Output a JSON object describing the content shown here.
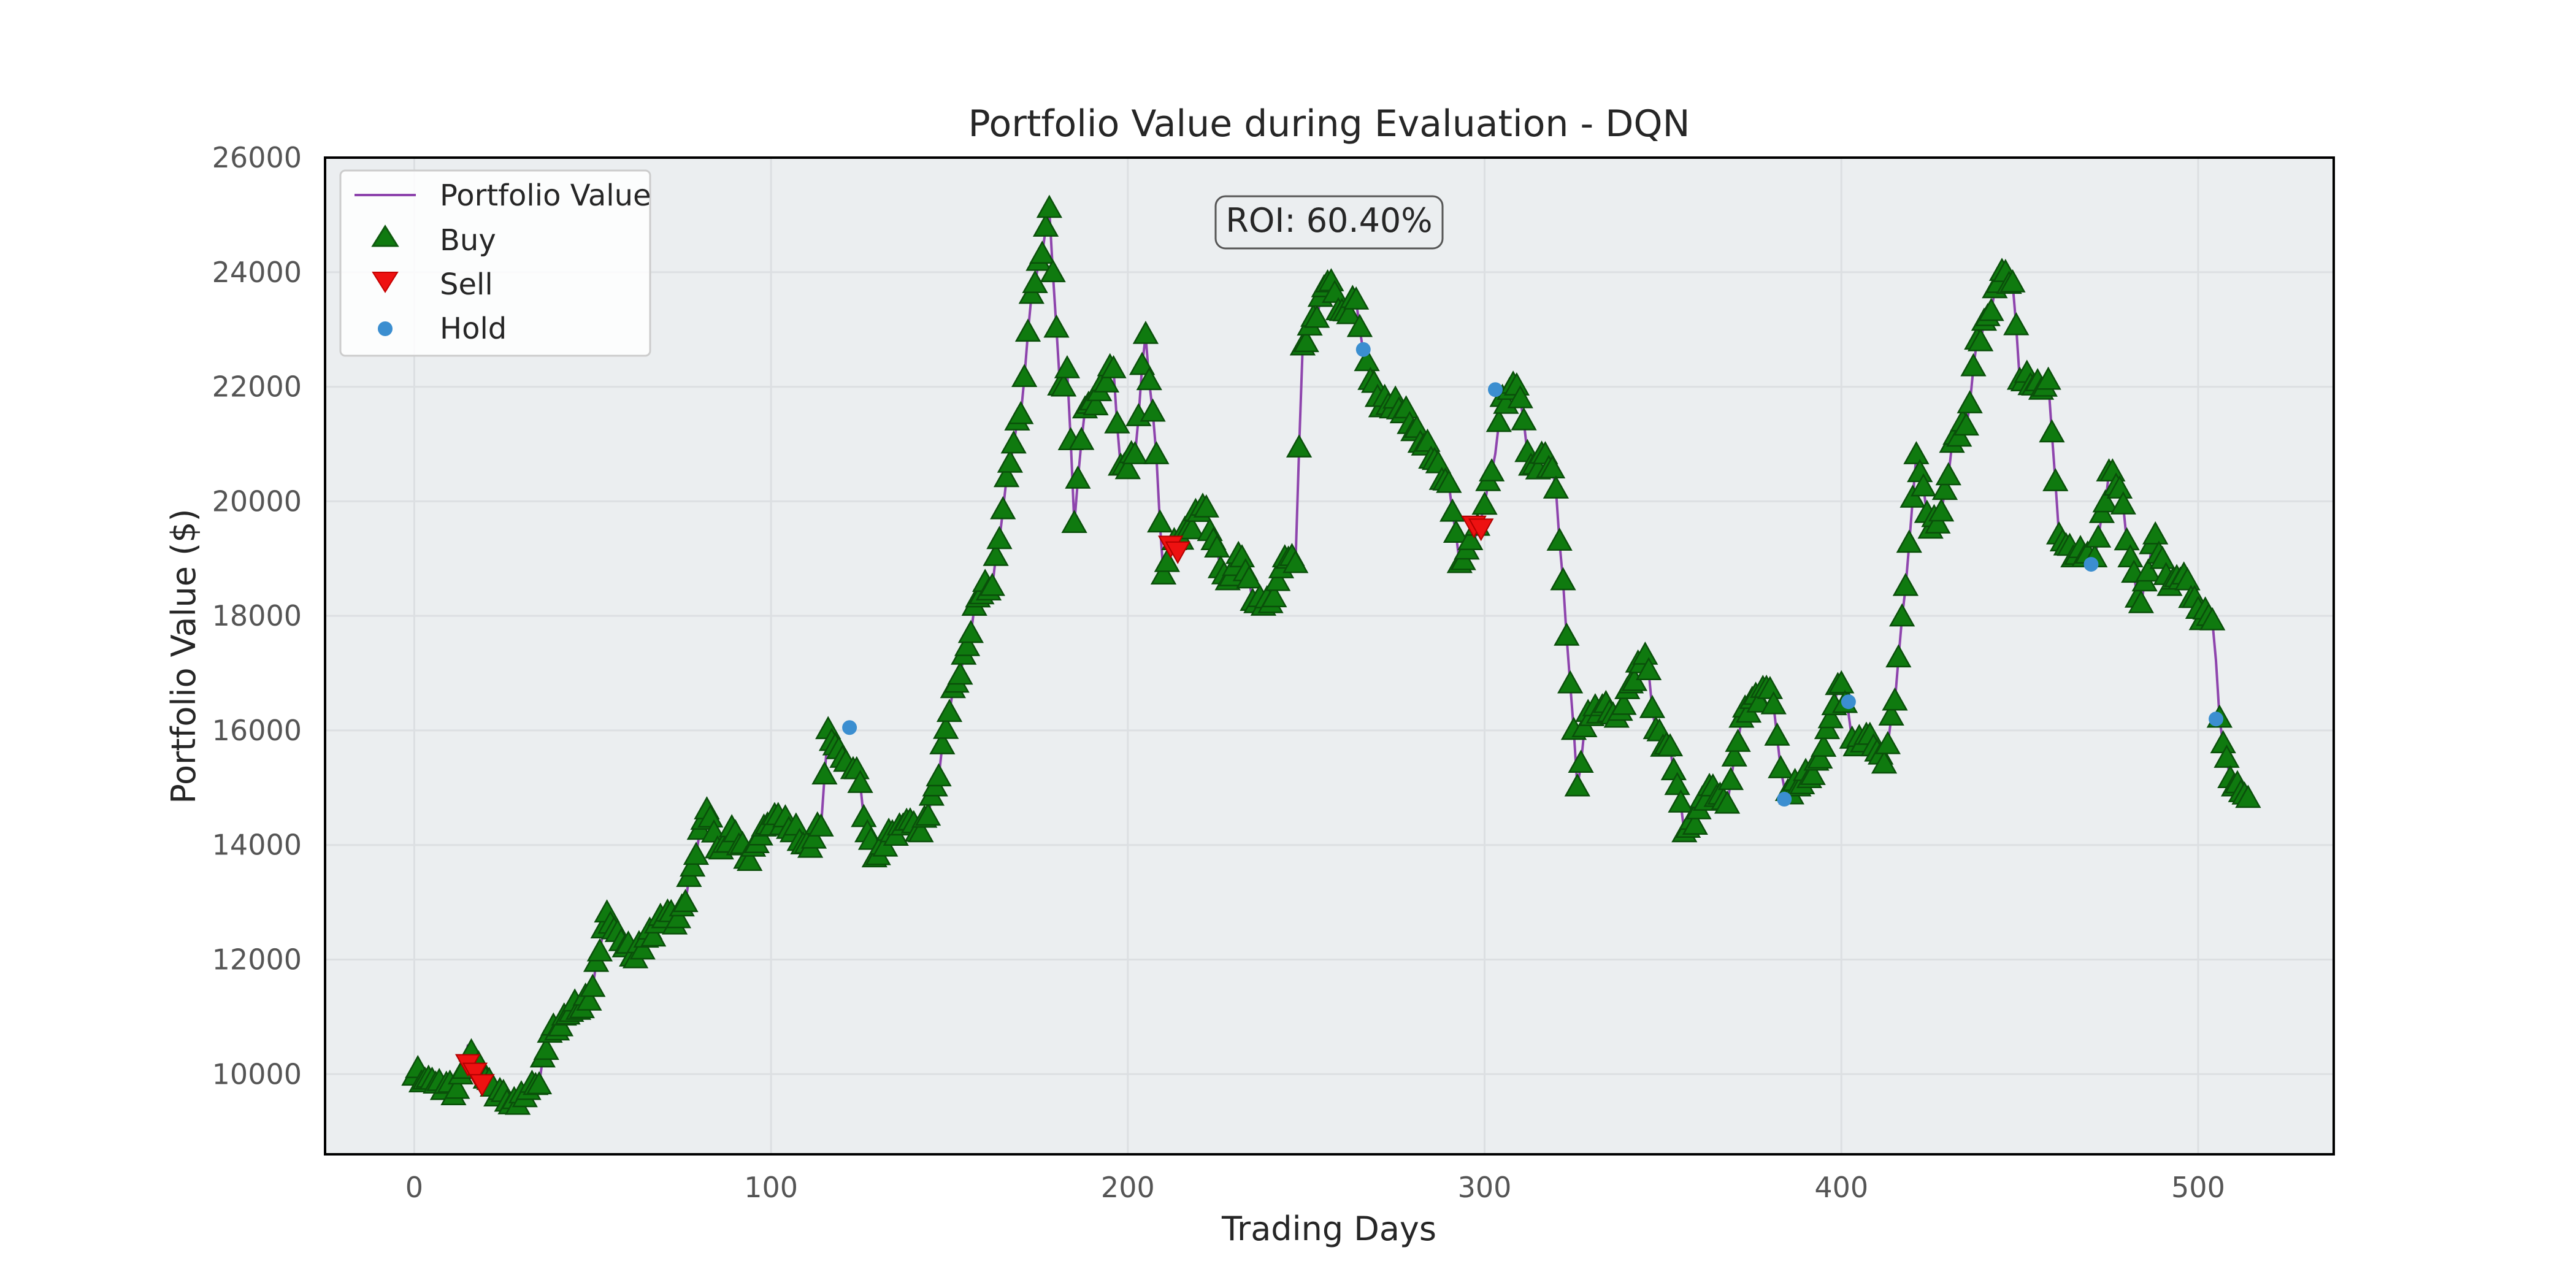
{
  "colors": {
    "background": "#ffffff",
    "plot_background": "#ebeef0",
    "grid": "#dcdfe2",
    "frame": "#000000",
    "line": "#8e44ad",
    "buy": "#0f7a0f",
    "sell": "#ee1111",
    "hold": "#3b8ed0",
    "text": "#262626",
    "tick_text": "#555555"
  },
  "roi_label": "ROI: 60.40%",
  "chart_data": {
    "type": "line",
    "title": "Portfolio Value during Evaluation - DQN",
    "xlabel": "Trading Days",
    "ylabel": "Portfolio Value ($)",
    "xlim": [
      -25,
      538
    ],
    "ylim": [
      8600,
      26000
    ],
    "xticks": [
      0,
      100,
      200,
      300,
      400,
      500
    ],
    "yticks": [
      10000,
      12000,
      14000,
      16000,
      18000,
      20000,
      22000,
      24000,
      26000
    ],
    "grid": true,
    "legend": {
      "position": "top-left",
      "entries": [
        "Portfolio Value",
        "Buy",
        "Sell",
        "Hold"
      ]
    },
    "anchors": [
      [
        0,
        9950
      ],
      [
        5,
        9880
      ],
      [
        8,
        9700
      ],
      [
        12,
        9720
      ],
      [
        15,
        10500
      ],
      [
        17,
        10100
      ],
      [
        20,
        9900
      ],
      [
        24,
        9700
      ],
      [
        27,
        9450
      ],
      [
        32,
        9700
      ],
      [
        35,
        9800
      ],
      [
        38,
        10700
      ],
      [
        42,
        11000
      ],
      [
        46,
        11100
      ],
      [
        50,
        11500
      ],
      [
        54,
        12800
      ],
      [
        58,
        12300
      ],
      [
        62,
        12000
      ],
      [
        66,
        12500
      ],
      [
        70,
        12700
      ],
      [
        74,
        12700
      ],
      [
        78,
        13600
      ],
      [
        82,
        14600
      ],
      [
        86,
        13900
      ],
      [
        90,
        14200
      ],
      [
        94,
        13700
      ],
      [
        98,
        14300
      ],
      [
        102,
        14500
      ],
      [
        106,
        14200
      ],
      [
        110,
        14000
      ],
      [
        114,
        14300
      ],
      [
        116,
        16000
      ],
      [
        120,
        15500
      ],
      [
        124,
        15300
      ],
      [
        127,
        14200
      ],
      [
        130,
        13800
      ],
      [
        134,
        14200
      ],
      [
        138,
        14400
      ],
      [
        142,
        14200
      ],
      [
        146,
        15000
      ],
      [
        150,
        16300
      ],
      [
        154,
        17300
      ],
      [
        158,
        18300
      ],
      [
        162,
        18500
      ],
      [
        166,
        20400
      ],
      [
        170,
        21500
      ],
      [
        173,
        23600
      ],
      [
        176,
        24300
      ],
      [
        178,
        25100
      ],
      [
        181,
        22000
      ],
      [
        183,
        22300
      ],
      [
        185,
        19600
      ],
      [
        188,
        21600
      ],
      [
        192,
        21900
      ],
      [
        196,
        22300
      ],
      [
        198,
        20600
      ],
      [
        202,
        20800
      ],
      [
        205,
        22900
      ],
      [
        208,
        20800
      ],
      [
        210,
        18700
      ],
      [
        213,
        19300
      ],
      [
        217,
        19500
      ],
      [
        221,
        19900
      ],
      [
        224,
        19300
      ],
      [
        228,
        18600
      ],
      [
        232,
        19000
      ],
      [
        236,
        18200
      ],
      [
        240,
        18200
      ],
      [
        244,
        19000
      ],
      [
        247,
        18900
      ],
      [
        249,
        22700
      ],
      [
        252,
        23200
      ],
      [
        256,
        23800
      ],
      [
        260,
        23300
      ],
      [
        264,
        23500
      ],
      [
        266,
        22600
      ],
      [
        270,
        21800
      ],
      [
        274,
        21600
      ],
      [
        278,
        21600
      ],
      [
        282,
        21000
      ],
      [
        286,
        20700
      ],
      [
        290,
        20300
      ],
      [
        293,
        18900
      ],
      [
        296,
        19300
      ],
      [
        299,
        19700
      ],
      [
        302,
        20500
      ],
      [
        305,
        21800
      ],
      [
        309,
        22000
      ],
      [
        313,
        20600
      ],
      [
        317,
        20800
      ],
      [
        320,
        20200
      ],
      [
        322,
        18600
      ],
      [
        324,
        16800
      ],
      [
        326,
        15000
      ],
      [
        329,
        16300
      ],
      [
        333,
        16400
      ],
      [
        337,
        16200
      ],
      [
        341,
        16800
      ],
      [
        345,
        17300
      ],
      [
        348,
        16000
      ],
      [
        352,
        15700
      ],
      [
        356,
        14200
      ],
      [
        360,
        14600
      ],
      [
        364,
        15000
      ],
      [
        368,
        14700
      ],
      [
        372,
        16200
      ],
      [
        376,
        16600
      ],
      [
        380,
        16700
      ],
      [
        384,
        15000
      ],
      [
        388,
        15000
      ],
      [
        392,
        15200
      ],
      [
        396,
        16000
      ],
      [
        400,
        16800
      ],
      [
        404,
        15700
      ],
      [
        408,
        15900
      ],
      [
        412,
        15400
      ],
      [
        415,
        16500
      ],
      [
        418,
        18500
      ],
      [
        421,
        20800
      ],
      [
        425,
        19500
      ],
      [
        428,
        19800
      ],
      [
        431,
        21000
      ],
      [
        435,
        21300
      ],
      [
        438,
        22800
      ],
      [
        442,
        23300
      ],
      [
        445,
        24000
      ],
      [
        448,
        23800
      ],
      [
        450,
        22100
      ],
      [
        454,
        22000
      ],
      [
        458,
        22100
      ],
      [
        461,
        19400
      ],
      [
        464,
        19200
      ],
      [
        468,
        19000
      ],
      [
        471,
        19000
      ],
      [
        475,
        20500
      ],
      [
        478,
        20200
      ],
      [
        481,
        19000
      ],
      [
        484,
        18200
      ],
      [
        488,
        19400
      ],
      [
        492,
        18500
      ],
      [
        496,
        18700
      ],
      [
        500,
        18100
      ],
      [
        504,
        17900
      ],
      [
        506,
        16200
      ],
      [
        508,
        15500
      ],
      [
        510,
        15000
      ],
      [
        512,
        14900
      ],
      [
        514,
        14800
      ]
    ],
    "sell_days": [
      [
        15,
        10200
      ],
      [
        17,
        10050
      ],
      [
        19,
        9850
      ],
      [
        212,
        19250
      ],
      [
        214,
        19150
      ],
      [
        297,
        19600
      ],
      [
        299,
        19550
      ]
    ],
    "hold_days": [
      [
        122,
        16050
      ],
      [
        266,
        22650
      ],
      [
        303,
        21950
      ],
      [
        384,
        14800
      ],
      [
        402,
        16500
      ],
      [
        470,
        18900
      ],
      [
        505,
        16200
      ]
    ],
    "buy_exclusions": [
      15,
      17,
      19,
      122,
      212,
      214,
      266,
      297,
      299,
      303,
      384,
      402,
      470,
      505
    ],
    "days": [
      0,
      514
    ]
  }
}
